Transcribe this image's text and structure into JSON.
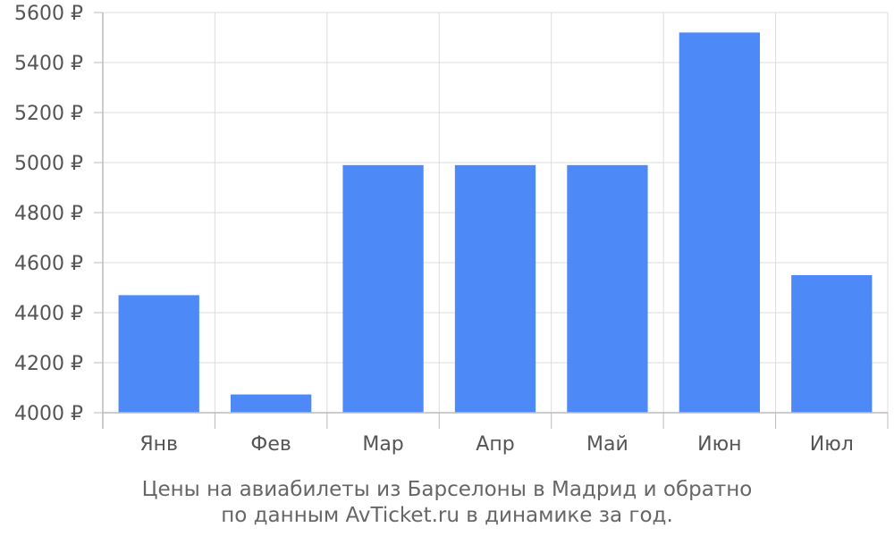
{
  "chart_data": {
    "type": "bar",
    "categories": [
      "Янв",
      "Фев",
      "Мар",
      "Апр",
      "Май",
      "Июн",
      "Июл"
    ],
    "values": [
      4470,
      4073,
      4990,
      4990,
      4990,
      5520,
      4550
    ],
    "ylim": [
      4000,
      5600
    ],
    "y_ticks": [
      4000,
      4200,
      4400,
      4600,
      4800,
      5000,
      5200,
      5400,
      5600
    ],
    "y_tick_labels": [
      "4000 ₽",
      "4200 ₽",
      "4400 ₽",
      "4600 ₽",
      "4800 ₽",
      "5000 ₽",
      "5200 ₽",
      "5400 ₽",
      "5600 ₽"
    ],
    "bar_color": "#4d8af8",
    "grid": true,
    "caption_line1": "Цены на авиабилеты из Барселоны в Мадрид и обратно",
    "caption_line2": "по данным AvTicket.ru в динамике за год."
  }
}
